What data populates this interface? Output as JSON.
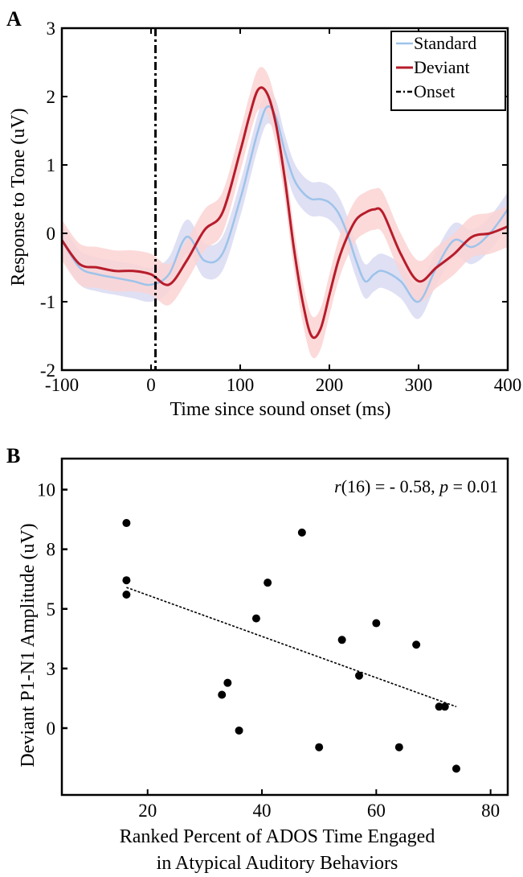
{
  "colors": {
    "standard": "#9ec3ea",
    "standard_band": "#d9dbf2",
    "deviant": "#b71c2b",
    "deviant_band": "#fbd3d3",
    "onset": "#000000",
    "points": "#000000",
    "fit": "#000000"
  },
  "chart_data": [
    {
      "panel_label": "A",
      "type": "line",
      "xlabel": "Time since sound onset (ms)",
      "ylabel": "Response to Tone (uV)",
      "xlim": [
        -100,
        400
      ],
      "ylim": [
        -2,
        3
      ],
      "xticks": [
        -100,
        0,
        100,
        200,
        300,
        400
      ],
      "yticks": [
        -2,
        -1,
        0,
        1,
        2,
        3
      ],
      "onset_x": 5,
      "legend": {
        "placement": "top-right",
        "entries": [
          "Standard",
          "Deviant",
          "Onset"
        ]
      },
      "x": [
        -100,
        -80,
        -60,
        -40,
        -20,
        0,
        20,
        40,
        60,
        80,
        100,
        110,
        120,
        130,
        140,
        150,
        160,
        170,
        180,
        190,
        200,
        210,
        220,
        230,
        240,
        250,
        260,
        280,
        300,
        320,
        340,
        360,
        380,
        400
      ],
      "series": [
        {
          "name": "Standard",
          "values": [
            -0.1,
            -0.5,
            -0.6,
            -0.65,
            -0.7,
            -0.75,
            -0.6,
            -0.05,
            -0.4,
            -0.3,
            0.5,
            1.0,
            1.5,
            1.85,
            1.7,
            1.2,
            0.8,
            0.6,
            0.5,
            0.5,
            0.45,
            0.3,
            0.0,
            -0.4,
            -0.7,
            -0.6,
            -0.55,
            -0.7,
            -1.0,
            -0.5,
            -0.1,
            -0.2,
            0.0,
            0.35
          ],
          "band": 0.25
        },
        {
          "name": "Deviant",
          "values": [
            -0.1,
            -0.45,
            -0.5,
            -0.55,
            -0.55,
            -0.6,
            -0.75,
            -0.4,
            0.05,
            0.3,
            1.2,
            1.7,
            2.1,
            2.05,
            1.6,
            0.8,
            -0.2,
            -1.0,
            -1.5,
            -1.4,
            -0.9,
            -0.4,
            -0.05,
            0.2,
            0.3,
            0.35,
            0.3,
            -0.3,
            -0.7,
            -0.5,
            -0.3,
            -0.05,
            0.0,
            0.1
          ],
          "band": 0.3
        }
      ]
    },
    {
      "panel_label": "B",
      "type": "scatter",
      "xlabel": "Ranked Percent of ADOS Time Engaged",
      "xlabel2": "in Atypical Auditory Behaviors",
      "ylabel": "Deviant P1-N1 Amplitude (uV)",
      "annotation": {
        "r_prefix": "r",
        "r_rest": "(16) = - 0.58, ",
        "p_prefix": "p",
        "p_rest": " = 0.01"
      },
      "xlim": [
        5,
        83
      ],
      "ylim": [
        -2.8,
        11.3
      ],
      "xticks": [
        20,
        40,
        60,
        80
      ],
      "ytick_values": [
        0,
        2.5,
        5,
        7.5,
        10
      ],
      "ytick_labels": [
        "0",
        "3",
        "5",
        "8",
        "10"
      ],
      "points": [
        {
          "x": 16.3,
          "y": 8.6
        },
        {
          "x": 16.3,
          "y": 6.2
        },
        {
          "x": 16.3,
          "y": 5.6
        },
        {
          "x": 33,
          "y": 1.4
        },
        {
          "x": 34,
          "y": 1.9
        },
        {
          "x": 36,
          "y": -0.1
        },
        {
          "x": 39,
          "y": 4.6
        },
        {
          "x": 41,
          "y": 6.1
        },
        {
          "x": 47,
          "y": 8.2
        },
        {
          "x": 50,
          "y": -0.8
        },
        {
          "x": 54,
          "y": 3.7
        },
        {
          "x": 57,
          "y": 2.2
        },
        {
          "x": 60,
          "y": 4.4
        },
        {
          "x": 64,
          "y": -0.8
        },
        {
          "x": 67,
          "y": 3.5
        },
        {
          "x": 71,
          "y": 0.9
        },
        {
          "x": 72,
          "y": 0.9
        },
        {
          "x": 74,
          "y": -1.7
        }
      ],
      "fit_line": {
        "x": [
          16.3,
          74
        ],
        "y": [
          5.9,
          0.9
        ]
      }
    }
  ]
}
